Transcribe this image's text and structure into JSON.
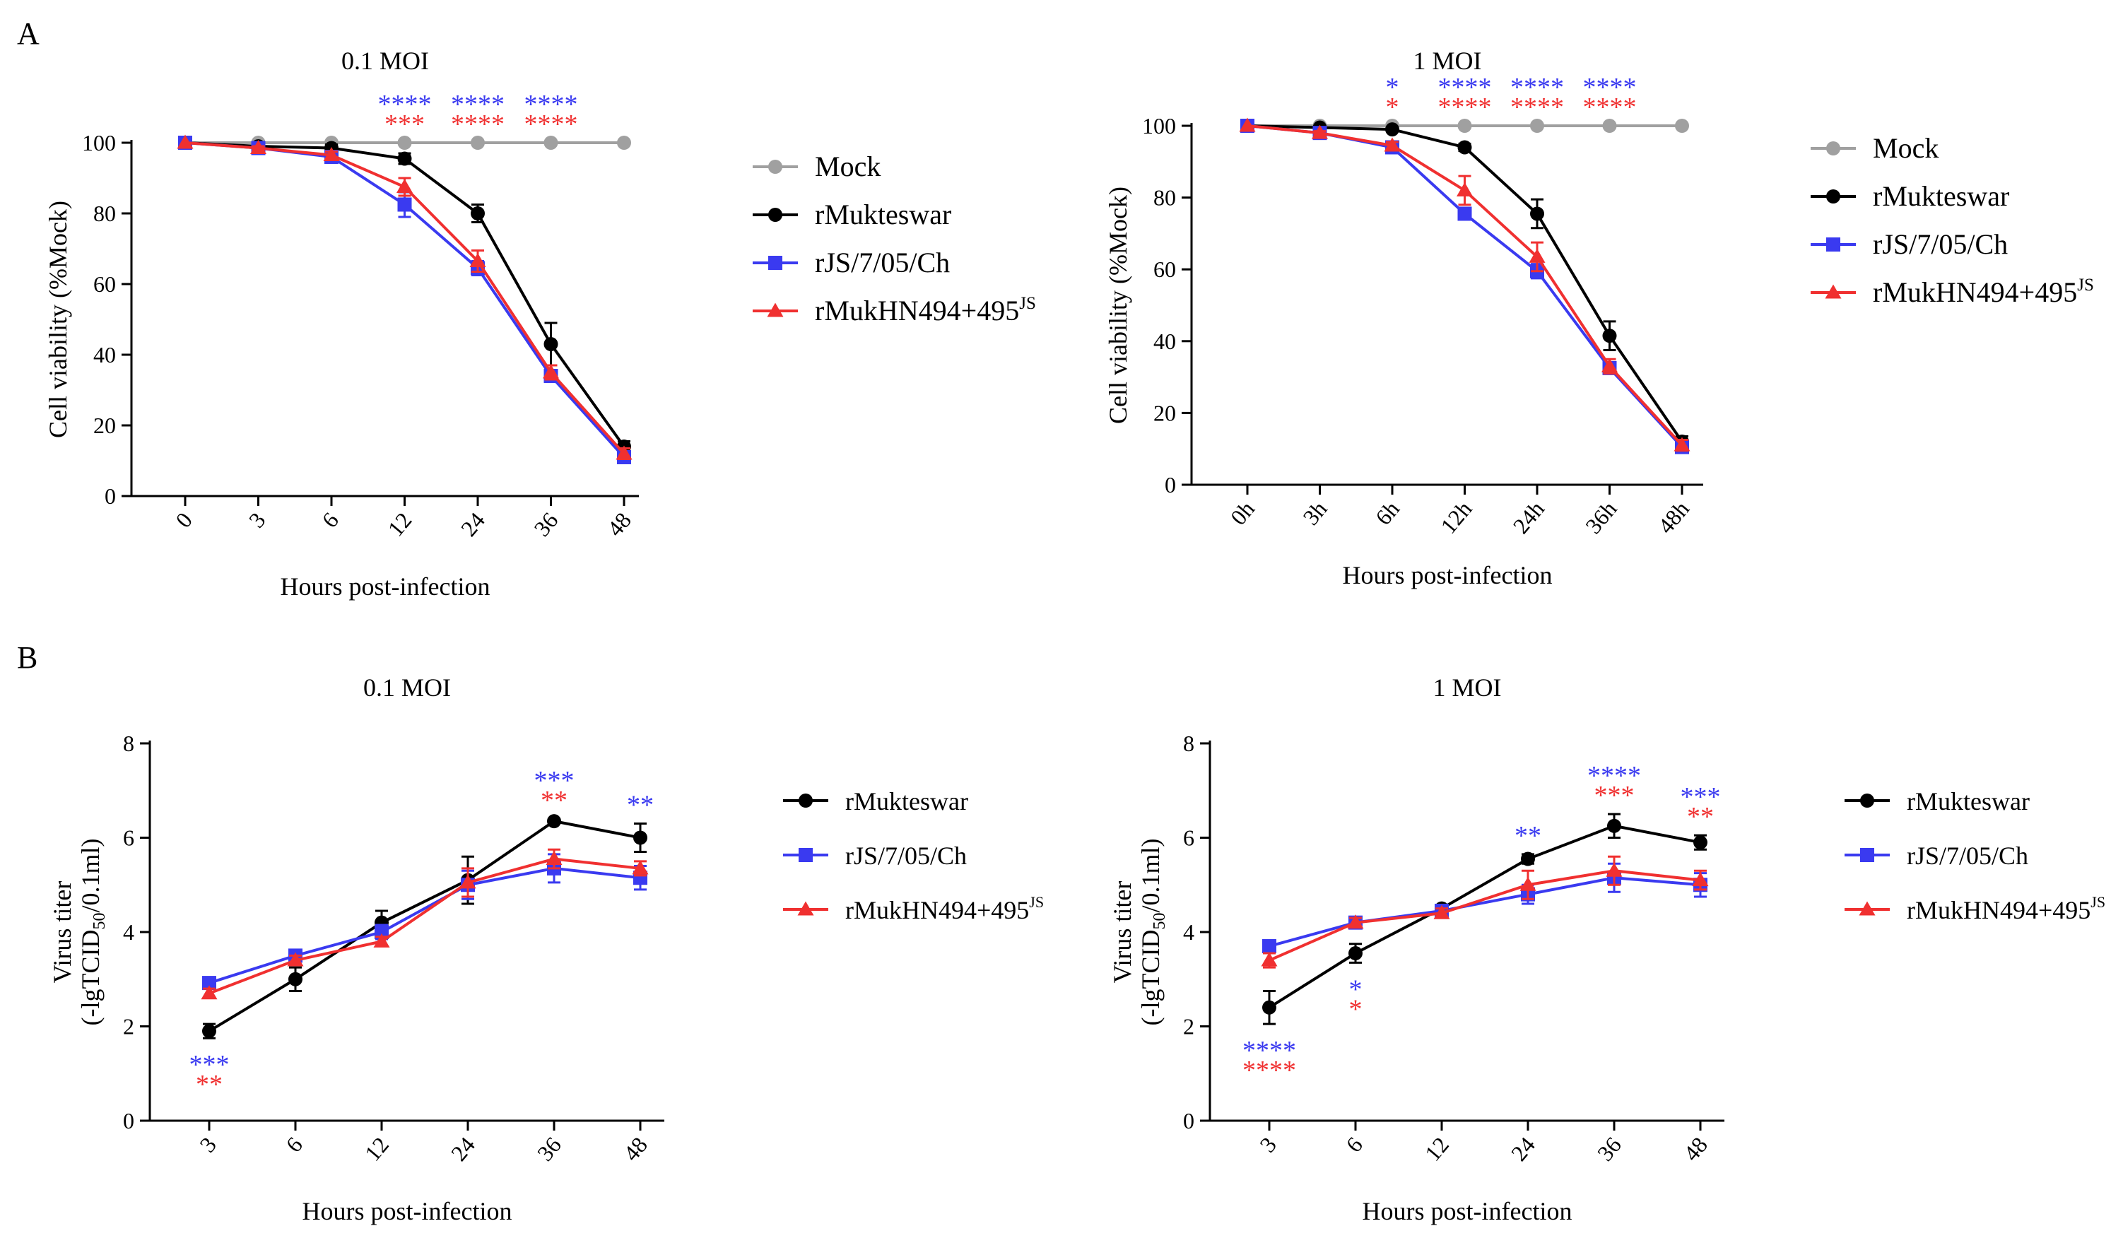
{
  "figure": {
    "panel_labels": [
      "A",
      "B"
    ]
  },
  "colors": {
    "mock": "#a0a0a0",
    "rmukteswar": "#000000",
    "rjs": "#3a3af0",
    "rmukhn": "#f03030",
    "star_blue": "#3a3af0",
    "star_red": "#f03030"
  },
  "chart_data": [
    {
      "id": "A1",
      "type": "line",
      "title": "0.1 MOI",
      "xlabel": "Hours post-infection",
      "ylabel": "Cell viability (%Mock)",
      "categories": [
        "0",
        "3",
        "6",
        "12",
        "24",
        "36",
        "48"
      ],
      "ylim": [
        0,
        100
      ],
      "yticks": [
        0,
        20,
        40,
        60,
        80,
        100
      ],
      "rotate_xticks": true,
      "series": [
        {
          "key": "mock",
          "name": "Mock",
          "marker": "circle",
          "values": [
            100,
            100,
            100,
            100,
            100,
            100,
            100
          ],
          "errors": [
            0,
            0,
            0,
            0,
            0,
            0,
            0
          ]
        },
        {
          "key": "rmukteswar",
          "name": "rMukteswar",
          "marker": "circle",
          "values": [
            100,
            99,
            98.5,
            95.5,
            80,
            43,
            14
          ],
          "errors": [
            0,
            0.5,
            1,
            1.5,
            2.5,
            6,
            1.5
          ]
        },
        {
          "key": "rjs",
          "name": "rJS/7/05/Ch",
          "marker": "square",
          "values": [
            100,
            98.5,
            96,
            82.5,
            64.5,
            34,
            11
          ],
          "errors": [
            0,
            0.5,
            1,
            3.5,
            2,
            1.5,
            1.5
          ]
        },
        {
          "key": "rmukhn",
          "name": "rMukHN494+495",
          "name_sup": "JS",
          "marker": "triangle",
          "values": [
            100,
            98.5,
            96.5,
            87.5,
            66.5,
            35,
            12
          ],
          "errors": [
            0,
            0.5,
            1,
            2.5,
            3,
            2,
            1.5
          ]
        }
      ],
      "annotations": [
        {
          "category": "12",
          "blue": "****",
          "red": "***"
        },
        {
          "category": "24",
          "blue": "****",
          "red": "****"
        },
        {
          "category": "36",
          "blue": "****",
          "red": "****"
        }
      ]
    },
    {
      "id": "A2",
      "type": "line",
      "title": "1 MOI",
      "xlabel": "Hours post-infection",
      "ylabel": "Cell viability (%Mock)",
      "categories": [
        "0h",
        "3h",
        "6h",
        "12h",
        "24h",
        "36h",
        "48h"
      ],
      "ylim": [
        0,
        100
      ],
      "yticks": [
        0,
        20,
        40,
        60,
        80,
        100
      ],
      "rotate_xticks": true,
      "series": [
        {
          "key": "mock",
          "name": "Mock",
          "marker": "circle",
          "values": [
            100,
            100,
            100,
            100,
            100,
            100,
            100
          ],
          "errors": [
            0,
            0,
            0,
            0,
            0,
            0,
            0
          ]
        },
        {
          "key": "rmukteswar",
          "name": "rMukteswar",
          "marker": "circle",
          "values": [
            100,
            99.5,
            99,
            94,
            75.5,
            41.5,
            12
          ],
          "errors": [
            0,
            0.5,
            0.5,
            1,
            4,
            4,
            1.5
          ]
        },
        {
          "key": "rjs",
          "name": "rJS/7/05/Ch",
          "marker": "square",
          "values": [
            100,
            98,
            94,
            75.5,
            59.5,
            32.5,
            10.5
          ],
          "errors": [
            0,
            0.5,
            1,
            1.5,
            2,
            1.5,
            1
          ]
        },
        {
          "key": "rmukhn",
          "name": "rMukHN494+495",
          "name_sup": "JS",
          "marker": "triangle",
          "values": [
            100,
            98,
            94.5,
            82,
            63.5,
            33,
            11
          ],
          "errors": [
            0,
            0.5,
            1,
            4,
            4,
            2,
            1.5
          ]
        }
      ],
      "annotations": [
        {
          "category": "6h",
          "blue": "*",
          "red": "*"
        },
        {
          "category": "12h",
          "blue": "****",
          "red": "****"
        },
        {
          "category": "24h",
          "blue": "****",
          "red": "****"
        },
        {
          "category": "36h",
          "blue": "****",
          "red": "****"
        }
      ]
    },
    {
      "id": "B1",
      "type": "line",
      "title": "0.1 MOI",
      "xlabel": "Hours post-infection",
      "ylabel": "Virus titer",
      "ylabel2": "(-lgTCID",
      "ylabel2_sub": "50",
      "ylabel2_tail": "/0.1ml)",
      "categories": [
        "3",
        "6",
        "12",
        "24",
        "36",
        "48"
      ],
      "ylim": [
        0,
        8
      ],
      "yticks": [
        0,
        2,
        4,
        6,
        8
      ],
      "rotate_xticks": true,
      "series": [
        {
          "key": "rmukteswar",
          "name": "rMukteswar",
          "marker": "circle",
          "values": [
            1.9,
            3.0,
            4.2,
            5.1,
            6.35,
            6.0
          ],
          "errors": [
            0.15,
            0.25,
            0.25,
            0.5,
            0.05,
            0.3
          ]
        },
        {
          "key": "rjs",
          "name": "rJS/7/05/Ch",
          "marker": "square",
          "values": [
            2.92,
            3.5,
            4.0,
            5.0,
            5.35,
            5.15
          ],
          "errors": [
            0.1,
            0.1,
            0.15,
            0.3,
            0.3,
            0.25
          ]
        },
        {
          "key": "rmukhn",
          "name": "rMukHN494+495",
          "name_sup": "JS",
          "marker": "triangle",
          "values": [
            2.7,
            3.4,
            3.8,
            5.05,
            5.55,
            5.35
          ],
          "errors": [
            0.1,
            0.1,
            0.1,
            0.3,
            0.2,
            0.15
          ]
        }
      ],
      "annotations": [
        {
          "category": "3",
          "blue": "***",
          "red": "**",
          "position": "below"
        },
        {
          "category": "36",
          "blue": "***",
          "red": "**"
        },
        {
          "category": "48",
          "blue": "**",
          "red": ""
        }
      ]
    },
    {
      "id": "B2",
      "type": "line",
      "title": "1 MOI",
      "xlabel": "Hours post-infection",
      "ylabel": "Virus titer",
      "ylabel2": "(-lgTCID",
      "ylabel2_sub": "50",
      "ylabel2_tail": "/0.1ml)",
      "categories": [
        "3",
        "6",
        "12",
        "24",
        "36",
        "48"
      ],
      "ylim": [
        0,
        8
      ],
      "yticks": [
        0,
        2,
        4,
        6,
        8
      ],
      "rotate_xticks": true,
      "series": [
        {
          "key": "rmukteswar",
          "name": "rMukteswar",
          "marker": "circle",
          "values": [
            2.4,
            3.55,
            4.5,
            5.55,
            6.25,
            5.9
          ],
          "errors": [
            0.35,
            0.2,
            0.05,
            0.1,
            0.25,
            0.15
          ]
        },
        {
          "key": "rjs",
          "name": "rJS/7/05/Ch",
          "marker": "square",
          "values": [
            3.7,
            4.2,
            4.45,
            4.8,
            5.15,
            5.0
          ],
          "errors": [
            0.05,
            0.1,
            0.1,
            0.2,
            0.3,
            0.25
          ]
        },
        {
          "key": "rmukhn",
          "name": "rMukHN494+495",
          "name_sup": "JS",
          "marker": "triangle",
          "values": [
            3.4,
            4.2,
            4.4,
            5.0,
            5.3,
            5.1
          ],
          "errors": [
            0.15,
            0.1,
            0.1,
            0.3,
            0.3,
            0.2
          ]
        }
      ],
      "annotations": [
        {
          "category": "3",
          "blue": "****",
          "red": "****",
          "position": "below"
        },
        {
          "category": "6",
          "blue": "*",
          "red": "*",
          "position": "below"
        },
        {
          "category": "24",
          "blue": "**",
          "red": ""
        },
        {
          "category": "36",
          "blue": "****",
          "red": "***"
        },
        {
          "category": "48",
          "blue": "***",
          "red": "**"
        }
      ]
    }
  ]
}
